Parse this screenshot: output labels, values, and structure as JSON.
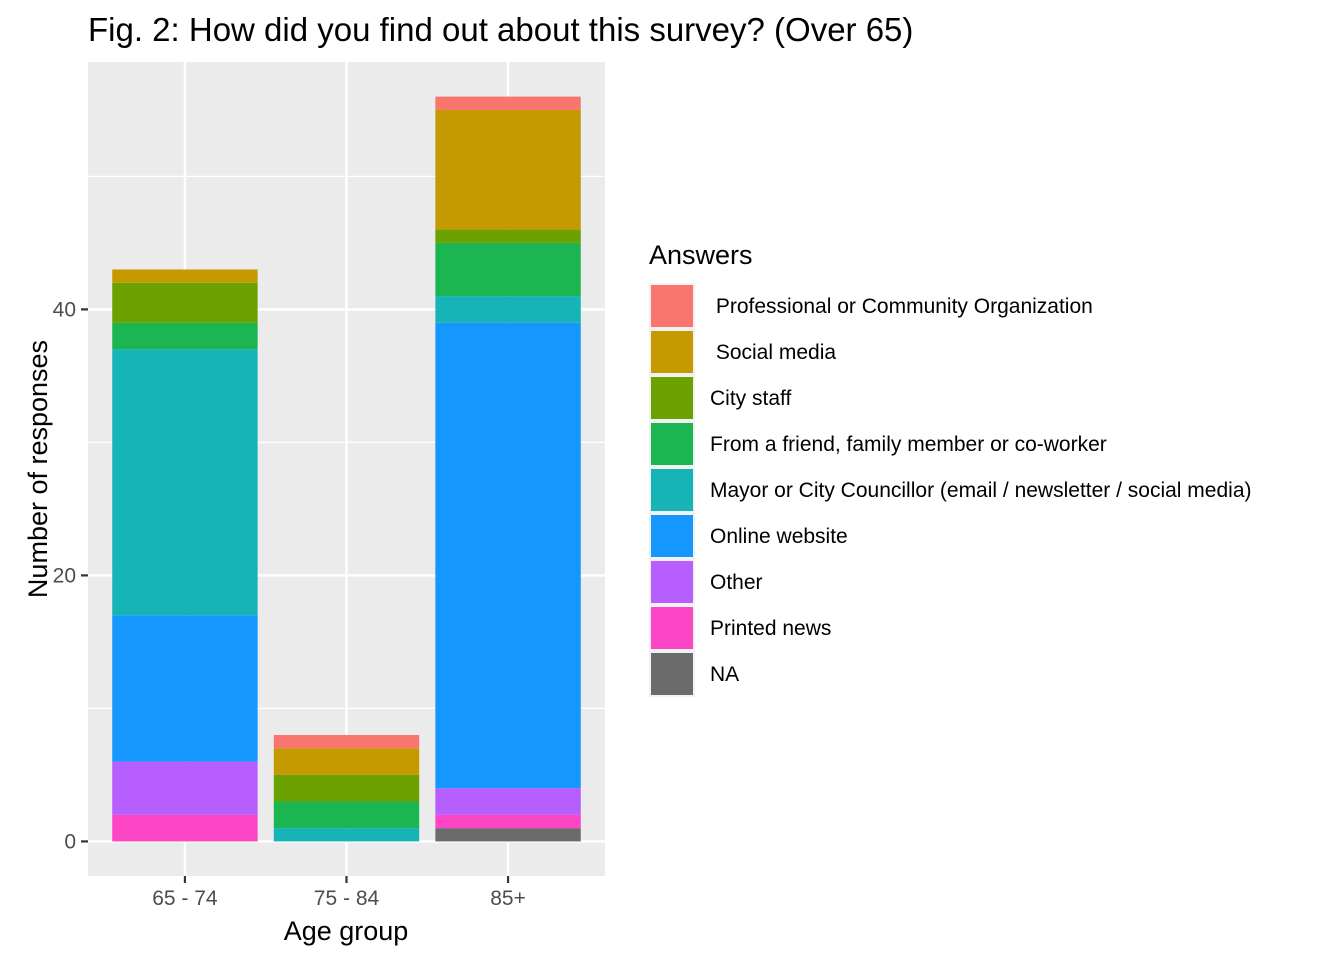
{
  "chart_data": {
    "type": "bar",
    "stacked": true,
    "title": "Fig. 2: How did you find out about this survey? (Over 65)",
    "xlabel": "Age group",
    "ylabel": "Number of responses",
    "categories": [
      "65 - 74",
      "75 - 84",
      "85+"
    ],
    "ylim": [
      -2.6,
      58.6
    ],
    "yticks": [
      "0",
      "20",
      "40"
    ],
    "grid": true,
    "legend": {
      "title": "Answers",
      "position": "right"
    },
    "series": [
      {
        "name": " Professional or Community Organization",
        "color": "#F8766D",
        "values": [
          0,
          1,
          1
        ]
      },
      {
        "name": " Social media",
        "color": "#C49A00",
        "values": [
          1,
          2,
          9
        ]
      },
      {
        "name": "City staff",
        "color": "#6BA200",
        "values": [
          3,
          2,
          1
        ]
      },
      {
        "name": "From a friend, family member or co-worker",
        "color": "#1BB652",
        "values": [
          2,
          2,
          4
        ]
      },
      {
        "name": "Mayor or City Councillor (email / newsletter / social media)",
        "color": "#17B4B7",
        "values": [
          20,
          1,
          2
        ]
      },
      {
        "name": "Online website",
        "color": "#1597FE",
        "values": [
          11,
          0,
          35
        ]
      },
      {
        "name": "Other",
        "color": "#B65EFE",
        "values": [
          4,
          0,
          2
        ]
      },
      {
        "name": "Printed news",
        "color": "#FD46C6",
        "values": [
          2,
          0,
          1
        ]
      },
      {
        "name": "NA",
        "color": "#6B6B6B",
        "values": [
          0,
          0,
          1
        ]
      }
    ]
  }
}
